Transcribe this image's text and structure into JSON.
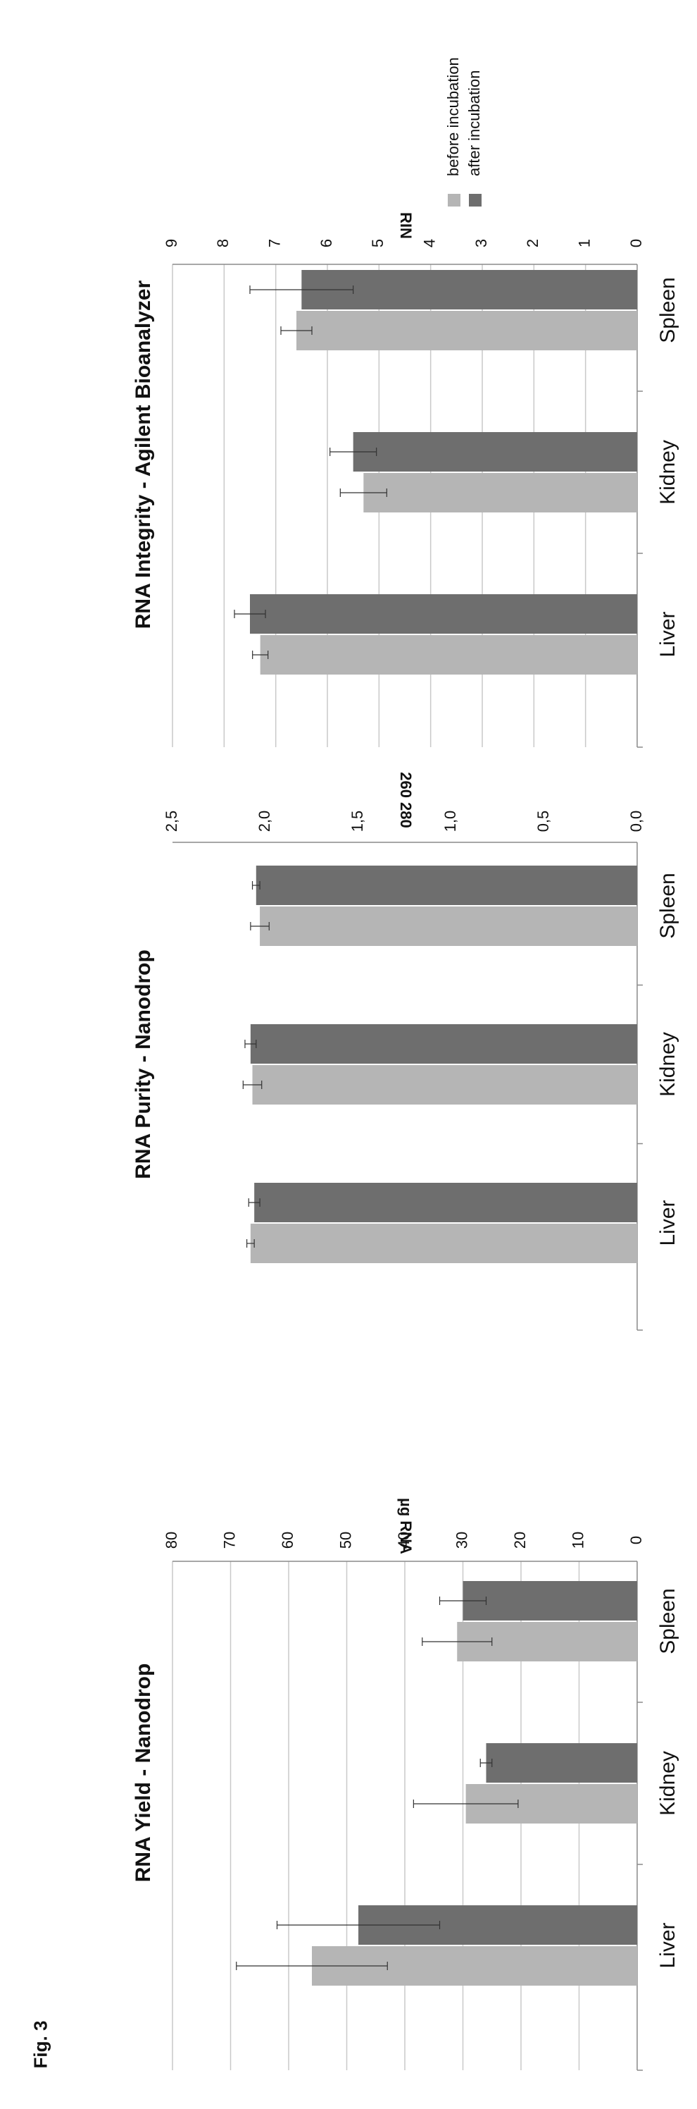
{
  "figure_label": "Fig. 3",
  "colors": {
    "before": "#b5b5b5",
    "after": "#6e6e6e",
    "grid": "#c9c9c9",
    "axis": "#8a8a8a"
  },
  "legend": {
    "before": "before incubation",
    "after": "after incubation",
    "placement": "top-right"
  },
  "chart_data": [
    {
      "type": "bar",
      "title": "RNA Yield - Nanodrop",
      "ylabel": "µg RNA",
      "categories": [
        "Liver",
        "Kidney",
        "Spleen"
      ],
      "ylim": [
        0,
        80
      ],
      "yticks": [
        "0",
        "10",
        "20",
        "30",
        "40",
        "50",
        "60",
        "70",
        "80"
      ],
      "grid": true,
      "series": [
        {
          "name": "before incubation",
          "values": [
            56,
            29.5,
            31
          ],
          "errors": [
            13,
            9,
            6
          ]
        },
        {
          "name": "after incubation",
          "values": [
            48,
            26,
            30
          ],
          "errors": [
            14,
            1,
            4
          ]
        }
      ]
    },
    {
      "type": "bar",
      "title": "RNA Purity - Nanodrop",
      "ylabel": "260 280",
      "categories": [
        "Liver",
        "Kidney",
        "Spleen"
      ],
      "ylim": [
        0,
        2.5
      ],
      "yticks": [
        "0,0",
        "0,5",
        "1,0",
        "1,5",
        "2,0",
        "2,5"
      ],
      "grid": false,
      "series": [
        {
          "name": "before incubation",
          "values": [
            2.08,
            2.07,
            2.03
          ],
          "errors": [
            0.02,
            0.05,
            0.05
          ]
        },
        {
          "name": "after incubation",
          "values": [
            2.06,
            2.08,
            2.05
          ],
          "errors": [
            0.03,
            0.03,
            0.02
          ]
        }
      ]
    },
    {
      "type": "bar",
      "title": "RNA Integrity - Agilent Bioanalyzer",
      "ylabel": "RIN",
      "categories": [
        "Liver",
        "Kidney",
        "Spleen"
      ],
      "ylim": [
        0,
        9
      ],
      "yticks": [
        "0",
        "1",
        "2",
        "3",
        "4",
        "5",
        "6",
        "7",
        "8",
        "9"
      ],
      "grid": true,
      "series": [
        {
          "name": "before incubation",
          "values": [
            7.3,
            5.3,
            6.6
          ],
          "errors": [
            0.15,
            0.45,
            0.3
          ]
        },
        {
          "name": "after incubation",
          "values": [
            7.5,
            5.5,
            6.5
          ],
          "errors": [
            0.3,
            0.45,
            1.0
          ]
        }
      ]
    }
  ]
}
